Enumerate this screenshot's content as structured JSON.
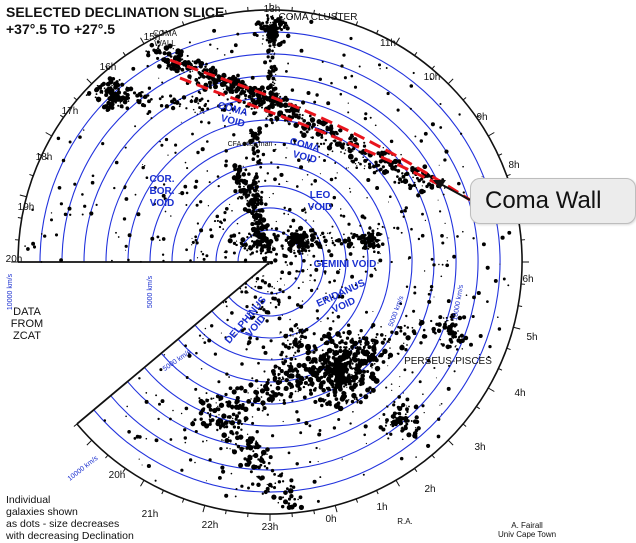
{
  "title": {
    "line1": "SELECTED DECLINATION SLICE",
    "line2": "+37°.5 TO +27°.5"
  },
  "data_source": [
    "DATA",
    "FROM",
    "ZCAT"
  ],
  "legend_note": [
    "Individual",
    "galaxies shown",
    "as dots - size decreases",
    "with decreasing Declination"
  ],
  "credit": [
    "A. Fairall",
    "Univ Cape Town"
  ],
  "callout": {
    "label": "Coma Wall"
  },
  "ra_label": "R.A.",
  "hour_labels": [
    "20h",
    "21h",
    "22h",
    "23h",
    "0h",
    "1h",
    "2h",
    "3h",
    "4h",
    "5h",
    "6h",
    "7h",
    "8h",
    "9h",
    "10h",
    "11h",
    "13h",
    "15h",
    "16h",
    "17h",
    "18h",
    "19h",
    "20h"
  ],
  "distance_labels": [
    "10000 km/s",
    "5000 km/s",
    "5000 km/s",
    "10000 km/s",
    "5000 km/s",
    "10000 km/s"
  ],
  "features": {
    "coma_cluster": "COMA   CLUSTER",
    "coma_wall": [
      "COMA",
      "WALL"
    ],
    "coma_void_1": [
      "COMA",
      "VOID"
    ],
    "coma_void_2": [
      "COMA",
      "VOID"
    ],
    "cfa_stick_man": "CFA stick man",
    "cor_bor_void": [
      "COR.",
      "BOR.",
      "VOID"
    ],
    "leo_void": [
      "LEO",
      "VOID"
    ],
    "gemini_void": "GEMINI   VOID",
    "eridanus_void": [
      "ERIDANUS",
      "VOID"
    ],
    "delphinus_void": [
      "DELPHINUS",
      "VOID"
    ],
    "perseus_pisces": "PERSEUS-PISCES"
  },
  "colors": {
    "rings": "#2233dd",
    "wall": "#e8141c",
    "dots": "#000000"
  }
}
